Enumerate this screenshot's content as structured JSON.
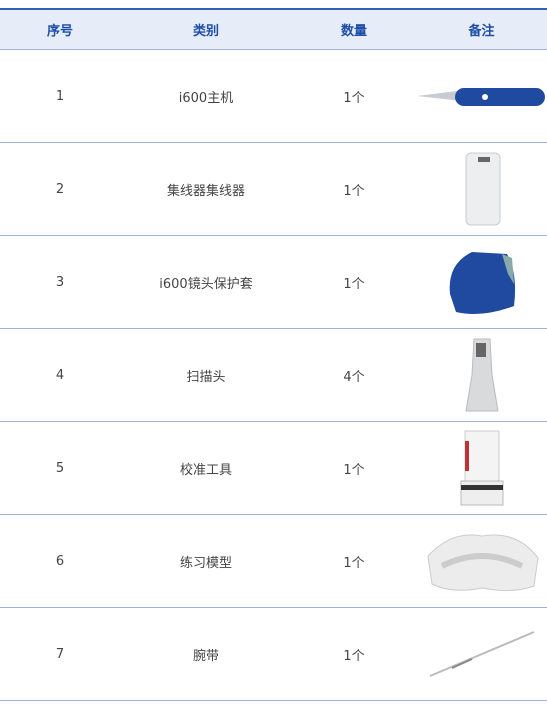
{
  "table": {
    "header": [
      "序号",
      "类别",
      "数量",
      "备注"
    ],
    "rows": [
      [
        "1",
        "i600主机",
        "1个"
      ],
      [
        "2",
        "集线器集线器",
        "1个"
      ],
      [
        "3",
        "i600镜头保护套",
        "1个"
      ],
      [
        "4",
        "扫描头",
        "4个"
      ],
      [
        "5",
        "校准工具",
        "1个"
      ],
      [
        "6",
        "练习模型",
        "1个"
      ],
      [
        "7",
        "腕带",
        "1个"
      ]
    ]
  }
}
